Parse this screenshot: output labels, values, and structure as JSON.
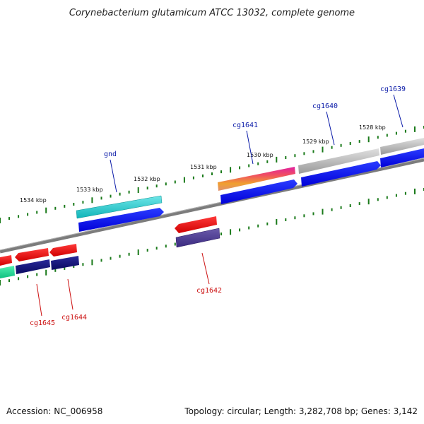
{
  "title": "Corynebacterium glutamicum ATCC 13032, complete genome",
  "footer": {
    "accession": "Accession: NC_006958",
    "topology": "Topology: circular; Length: 3,282,708 bp; Genes: 3,142"
  },
  "tick_labels": [
    "1534 kbp",
    "1533 kbp",
    "1532 kbp",
    "1531 kbp",
    "1530 kbp",
    "1529 kbp",
    "1528 kbp"
  ],
  "gene_labels_forward": [
    "gnd",
    "cg1641",
    "cg1640",
    "cg1639"
  ],
  "gene_labels_reverse": [
    "cg1642",
    "cg1645",
    "cg1644"
  ],
  "colors": {
    "backbone": "#8a8a8a",
    "ticks": "#1a7a1a",
    "forward_cds": "#0a0aee",
    "reverse_cds": "#ee1010",
    "cyan_feature": "#18c8cc",
    "navy_feature": "#10107a",
    "green_feature": "#18d890",
    "gradient_feature": [
      "#e030a0",
      "#f0a030"
    ],
    "gray_feature": "#b8b8b8"
  }
}
